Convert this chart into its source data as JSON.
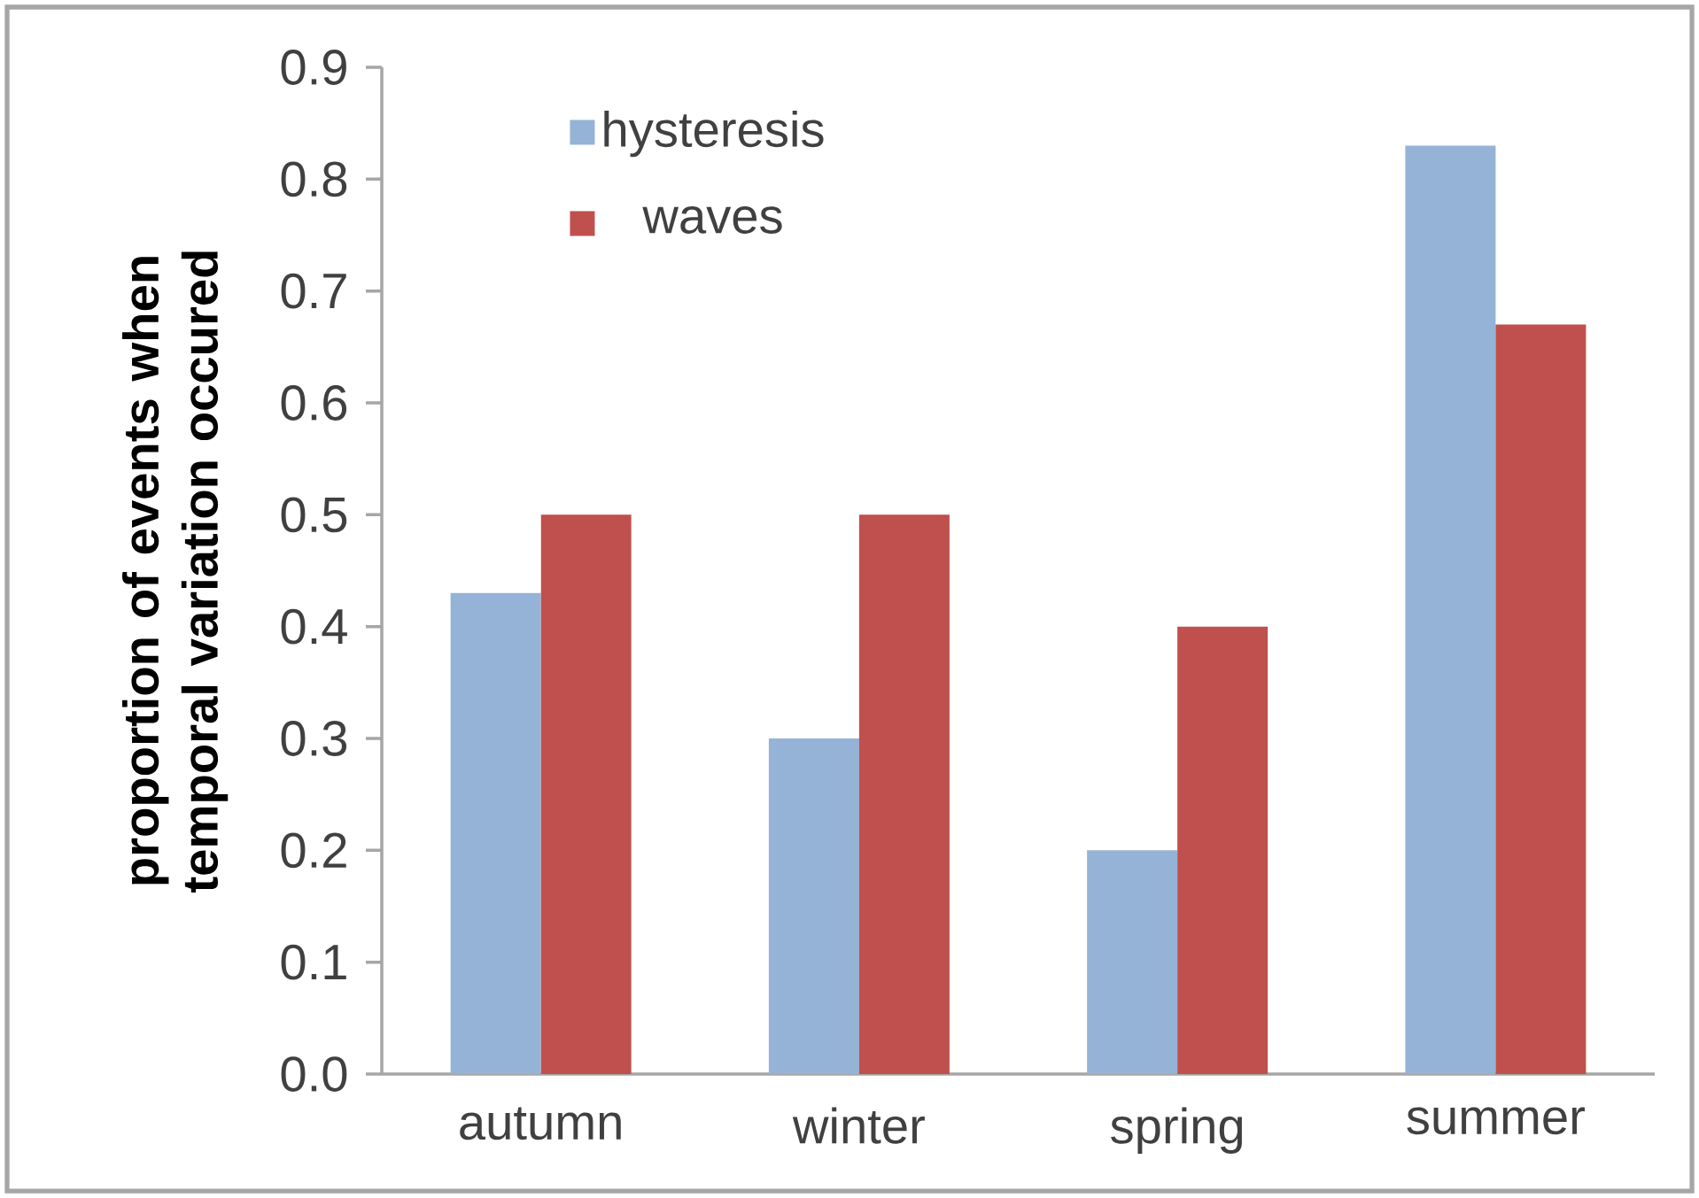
{
  "chart_data": {
    "type": "bar",
    "ylabel": "proportion of events when temporal variation occured",
    "categories": [
      "autumn",
      "winter",
      "spring",
      "summer"
    ],
    "series": [
      {
        "name": "hysteresis",
        "color": "#95b3d7",
        "values": [
          0.43,
          0.3,
          0.2,
          0.83
        ]
      },
      {
        "name": "waves",
        "color": "#c0504d",
        "values": [
          0.5,
          0.5,
          0.4,
          0.67
        ]
      }
    ],
    "ylim": [
      0,
      0.9
    ],
    "yticks": [
      {
        "value": 0,
        "label": "0.0"
      },
      0.1,
      0.2,
      0.3,
      0.4,
      0.5,
      0.6,
      0.7,
      0.8,
      0.9
    ],
    "legend": "top left",
    "grid": false
  }
}
